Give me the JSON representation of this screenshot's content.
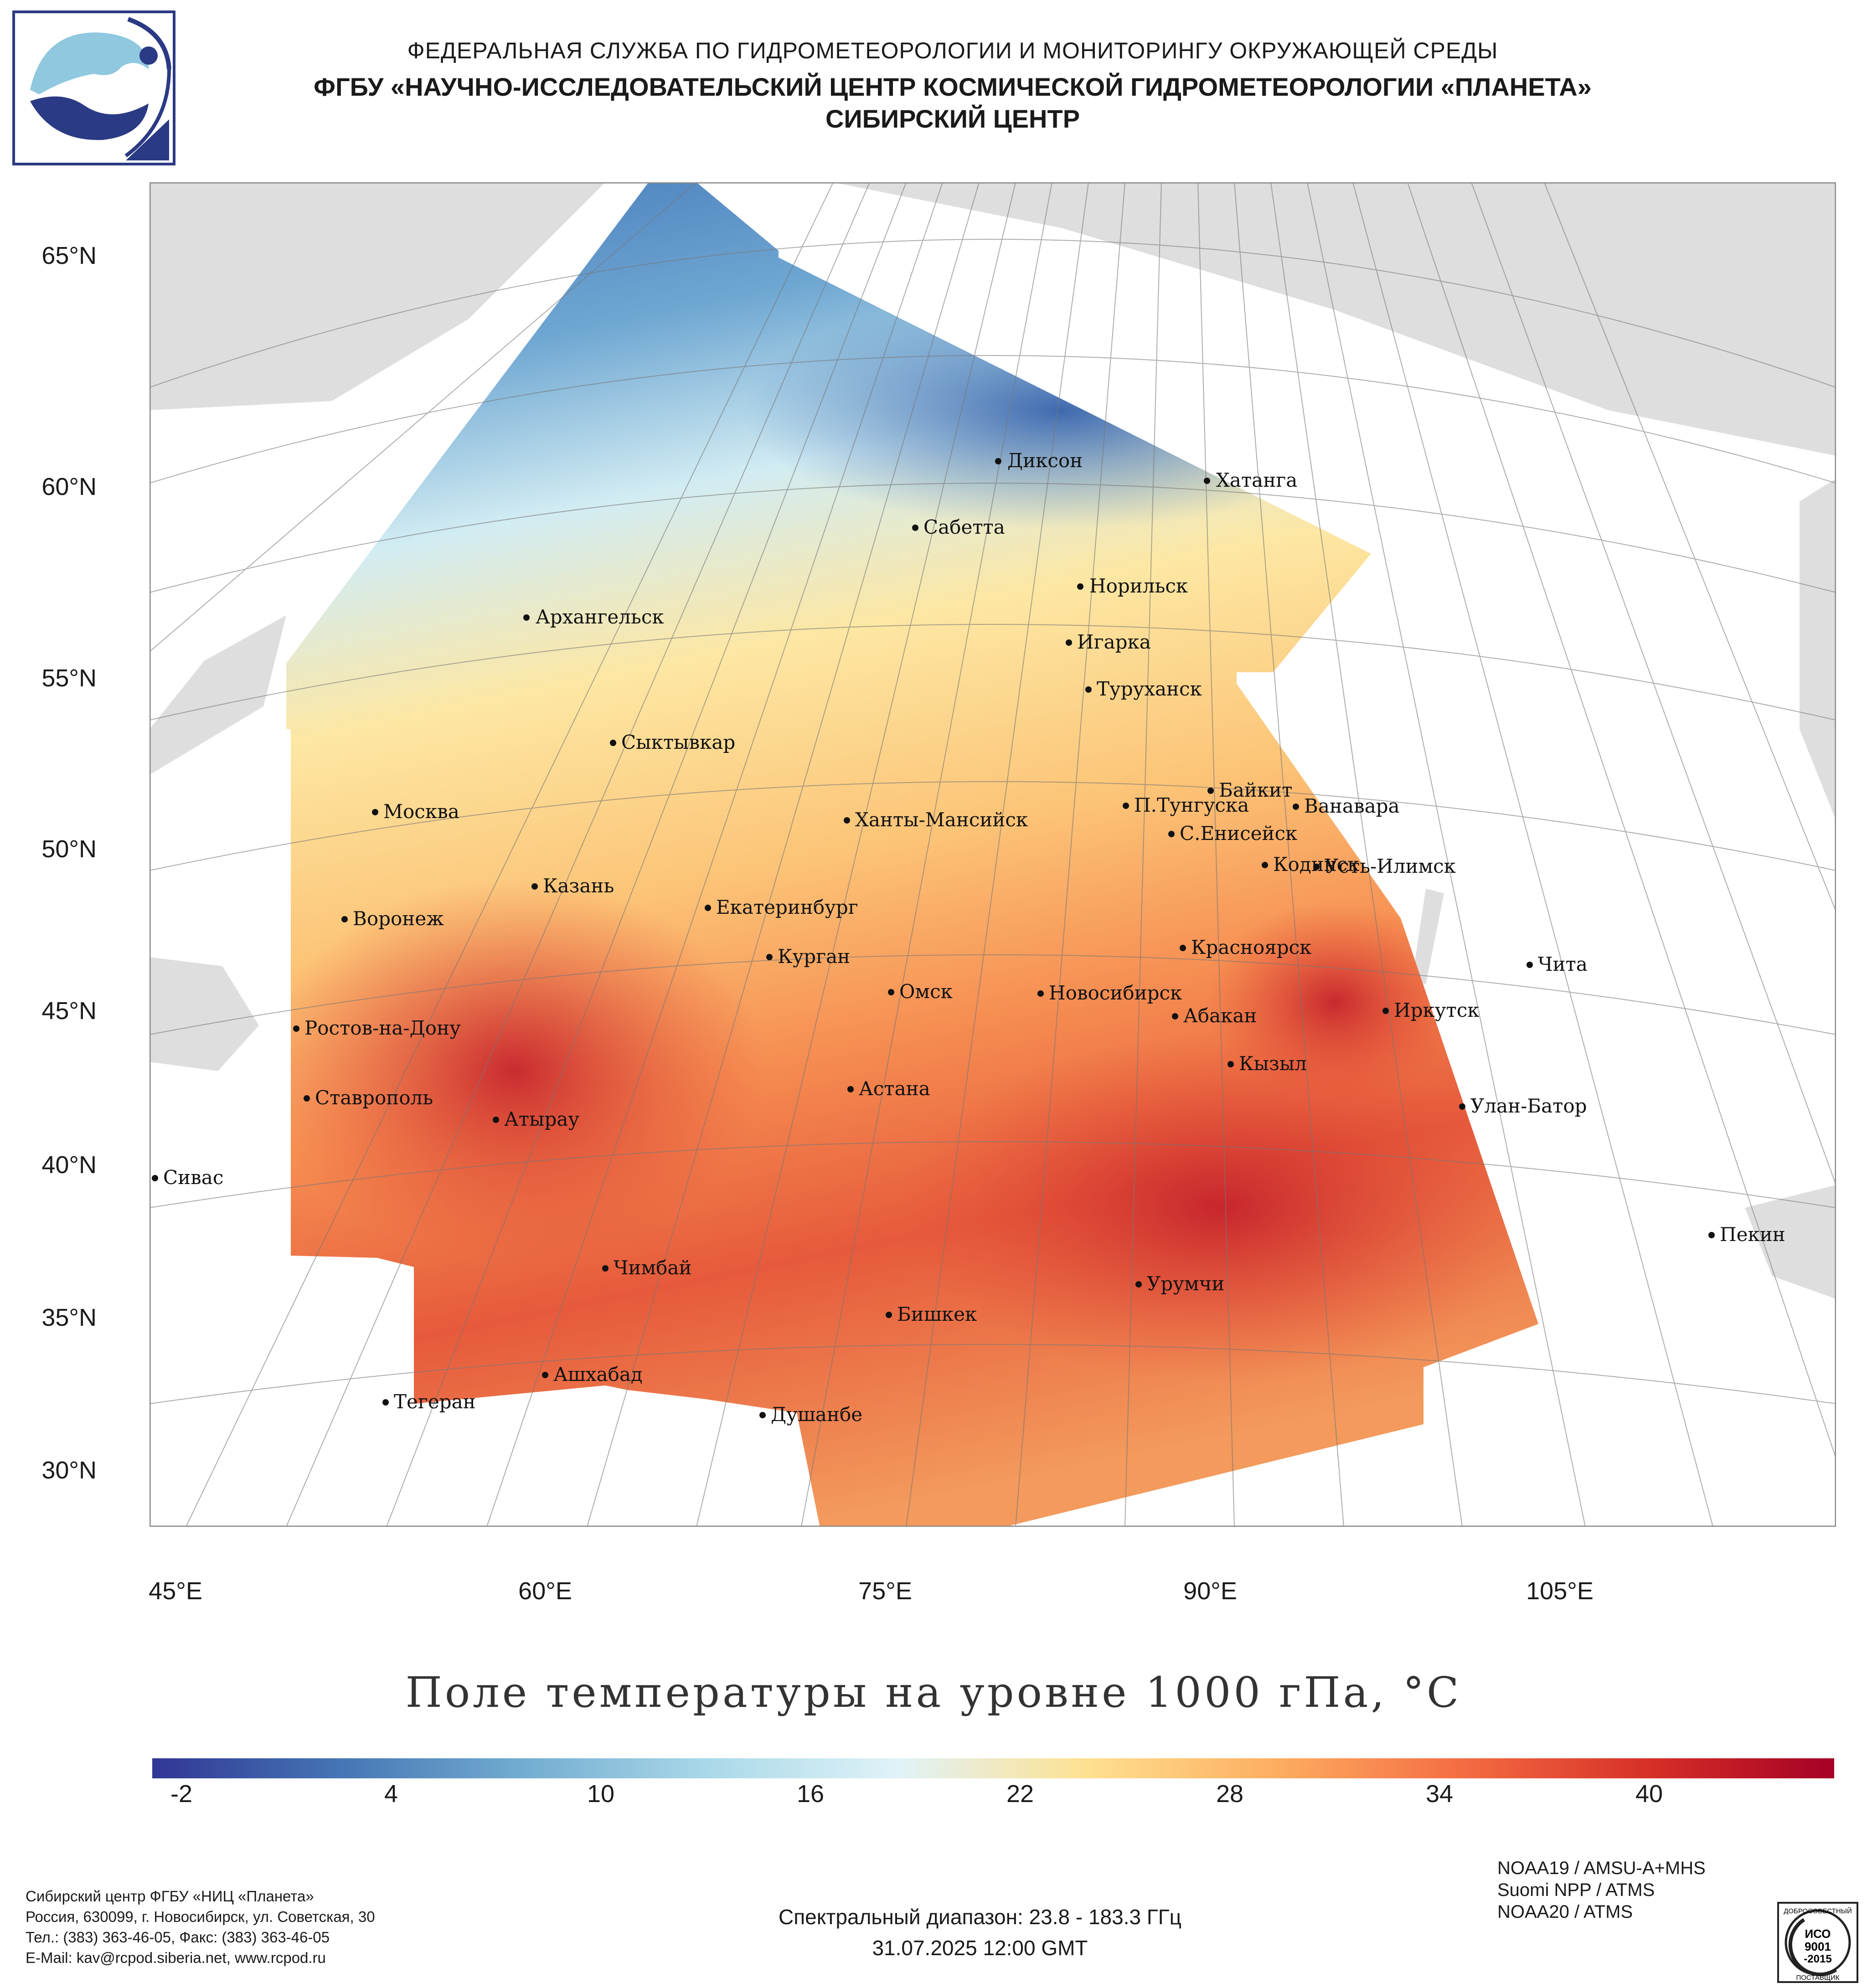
{
  "header": {
    "line1": "ФЕДЕРАЛЬНАЯ СЛУЖБА ПО ГИДРОМЕТЕОРОЛОГИИ И МОНИТОРИНГУ ОКРУЖАЮЩЕЙ СРЕДЫ",
    "line2": "ФГБУ «НАУЧНО-ИССЛЕДОВАТЕЛЬСКИЙ ЦЕНТР КОСМИЧЕСКОЙ ГИДРОМЕТЕОРОЛОГИИ «ПЛАНЕТА»",
    "line3": "СИБИРСКИЙ ЦЕНТР"
  },
  "map": {
    "lat_labels": [
      "65°N",
      "60°N",
      "55°N",
      "50°N",
      "45°N",
      "40°N",
      "35°N",
      "30°N"
    ],
    "lon_labels": [
      "45°E",
      "60°E",
      "75°E",
      "90°E",
      "105°E"
    ],
    "cities": [
      {
        "name": "Диксон"
      },
      {
        "name": "Хатанга"
      },
      {
        "name": "Сабетта"
      },
      {
        "name": "Норильск"
      },
      {
        "name": "Архангельск"
      },
      {
        "name": "Игарка"
      },
      {
        "name": "Туруханск"
      },
      {
        "name": "Сыктывкар"
      },
      {
        "name": "Байкит"
      },
      {
        "name": "П.Тунгуска"
      },
      {
        "name": "Ванавара"
      },
      {
        "name": "Москва"
      },
      {
        "name": "Ханты-Мансийск"
      },
      {
        "name": "С.Енисейск"
      },
      {
        "name": "Кодинск"
      },
      {
        "name": "Усть-Илимск"
      },
      {
        "name": "Казань"
      },
      {
        "name": "Екатеринбург"
      },
      {
        "name": "Воронеж"
      },
      {
        "name": "Красноярск"
      },
      {
        "name": "Курган"
      },
      {
        "name": "Чита"
      },
      {
        "name": "Омск"
      },
      {
        "name": "Новосибирск"
      },
      {
        "name": "Иркутск"
      },
      {
        "name": "Абакан"
      },
      {
        "name": "Ростов-на-Дону"
      },
      {
        "name": "Кызыл"
      },
      {
        "name": "Астана"
      },
      {
        "name": "Ставрополь"
      },
      {
        "name": "Улан-Батор"
      },
      {
        "name": "Атырау"
      },
      {
        "name": "Сивас"
      },
      {
        "name": "Пекин"
      },
      {
        "name": "Чимбай"
      },
      {
        "name": "Урумчи"
      },
      {
        "name": "Бишкек"
      },
      {
        "name": "Ашхабад"
      },
      {
        "name": "Тегеран"
      },
      {
        "name": "Душанбе"
      }
    ]
  },
  "title": "Поле температуры на уровне 1000 гПа, °C",
  "colorbar": {
    "labels": [
      "-2",
      "4",
      "10",
      "16",
      "22",
      "28",
      "34",
      "40"
    ],
    "min": -4,
    "max": 46,
    "colors": [
      "#313695",
      "#4575b4",
      "#74add1",
      "#abd9e9",
      "#e0f3f8",
      "#fee090",
      "#fdae61",
      "#f46d43",
      "#d73027",
      "#a50026"
    ]
  },
  "footer": {
    "org": "Сибирский центр ФГБУ «НИЦ «Планета»",
    "address": "Россия, 630099, г. Новосибирск, ул. Советская, 30",
    "phone": "Тел.: (383) 363-46-05, Факс: (383) 363-46-05",
    "email": "E-Mail: kav@rcpod.siberia.net, www.rcpod.ru",
    "spectral": "Спектральный диапазон: 23.8 - 183.3 ГГц",
    "datetime": "31.07.2025 12:00 GMT",
    "sat1": "NOAA19 / AMSU-A+MHS",
    "sat2": "Suomi NPP / ATMS",
    "sat3": "NOAA20 / ATMS"
  },
  "stamp": {
    "line1": "ДОБРОСОВЕСТНЫЙ",
    "line2": "ИСО",
    "line3": "9001",
    "line4": "-2015",
    "line5": "ПОСТАВЩИК"
  }
}
